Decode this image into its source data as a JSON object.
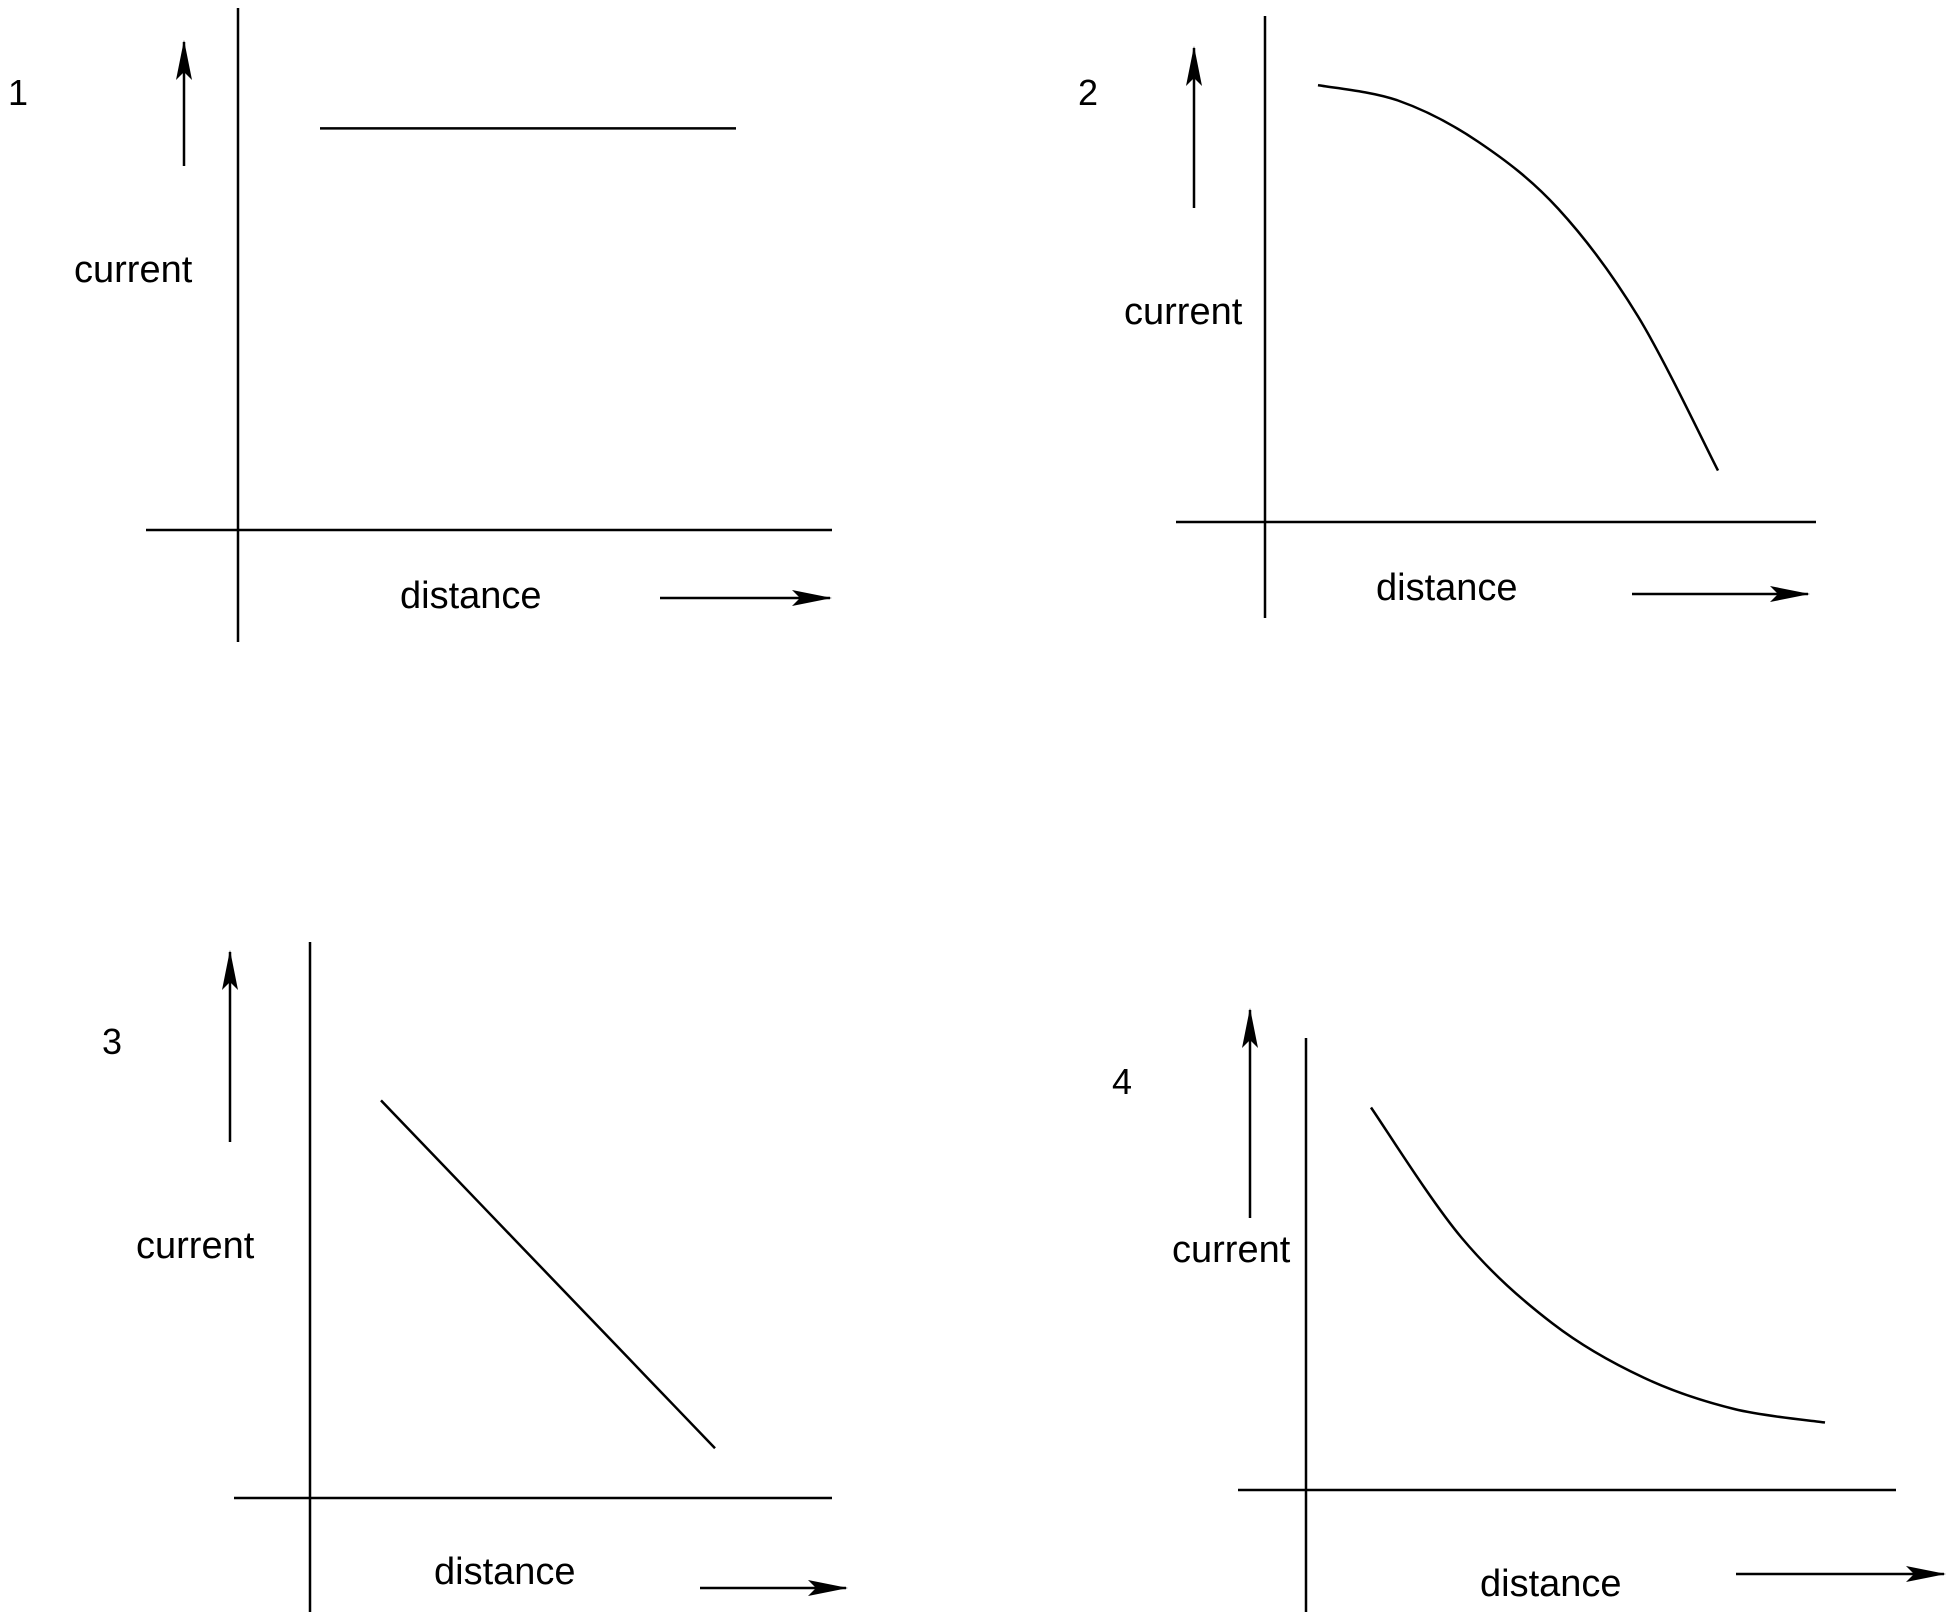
{
  "chart_data": [
    {
      "type": "line",
      "panel": "1",
      "xlabel": "distance",
      "ylabel": "current",
      "shape": "constant",
      "x": [
        0.0,
        0.2,
        0.4,
        0.6,
        0.8,
        1.0
      ],
      "y": [
        0.8,
        0.8,
        0.8,
        0.8,
        0.8,
        0.8
      ]
    },
    {
      "type": "line",
      "panel": "2",
      "xlabel": "distance",
      "ylabel": "current",
      "shape": "concave decreasing",
      "x": [
        0.0,
        0.2,
        0.4,
        0.6,
        0.8,
        1.0
      ],
      "y": [
        0.85,
        0.82,
        0.74,
        0.61,
        0.4,
        0.1
      ]
    },
    {
      "type": "line",
      "panel": "3",
      "xlabel": "distance",
      "ylabel": "current",
      "shape": "linear decreasing",
      "x": [
        0.0,
        0.2,
        0.4,
        0.6,
        0.8,
        1.0
      ],
      "y": [
        0.8,
        0.66,
        0.52,
        0.38,
        0.24,
        0.1
      ]
    },
    {
      "type": "line",
      "panel": "4",
      "xlabel": "distance",
      "ylabel": "current",
      "shape": "convex decreasing",
      "x": [
        0.0,
        0.2,
        0.4,
        0.6,
        0.8,
        1.0
      ],
      "y": [
        0.85,
        0.56,
        0.37,
        0.25,
        0.18,
        0.15
      ]
    }
  ]
}
